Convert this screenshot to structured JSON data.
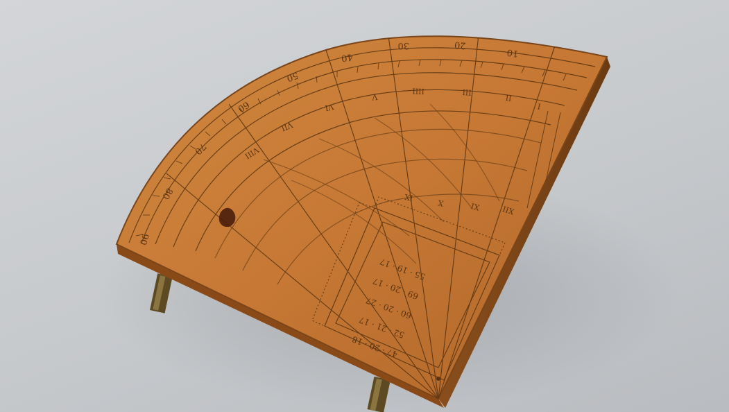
{
  "scene": {
    "subject": "wooden-quadrant",
    "colors": {
      "background": "#c8cbce",
      "wood": "#c87a36",
      "wood_dark": "#a85e22",
      "edge": "#7a4518",
      "engraving": "#5a3412",
      "brass": "#6e5a2c"
    }
  },
  "engraving": {
    "outer_scale_labels": [
      "10",
      "20",
      "30",
      "40",
      "50",
      "60",
      "70",
      "80",
      "90"
    ],
    "hour_labels": [
      "I",
      "II",
      "III",
      "IIII",
      "V",
      "VI",
      "VII",
      "VIII",
      "IX",
      "X",
      "XI",
      "XII"
    ],
    "table_rows": [
      "55 · 19 · 17",
      "69 · 20 · 17",
      "60 · 20 · 27",
      "52 · 21 · 17",
      "47 · 20 · 18"
    ]
  }
}
